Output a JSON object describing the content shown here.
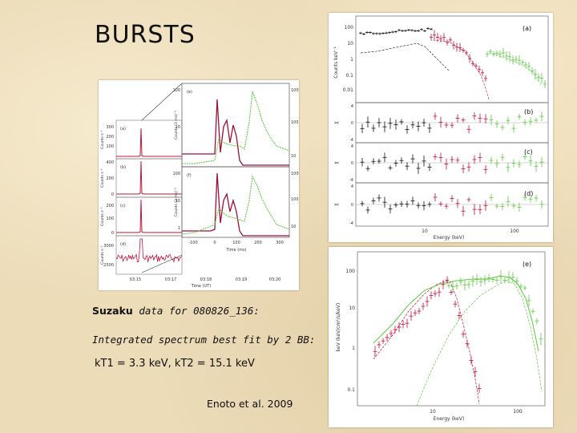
{
  "slide": {
    "title": "BURSTS",
    "caption_brand": "Suzaku",
    "caption_line1_rest": " data for 080826_136:",
    "caption_line2": "Integrated spectrum best fit by 2 BB:",
    "caption_line3": "kT1 = 3.3 keV, kT2 = 15.1 keV",
    "citation": "Enoto et al. 2009"
  },
  "colors": {
    "red": "#c0143c",
    "green": "#5fc842",
    "black": "#111111"
  },
  "chart_data": [
    {
      "type": "line",
      "panel": "light-curves",
      "xlabel": "Time (UT)",
      "x_ticks": [
        "03:15",
        "03:17",
        "03:18",
        "03:19",
        "03:20"
      ],
      "subpanels": [
        {
          "label": "(a)",
          "ylabel": "Counts s⁻¹",
          "y_ticks": [
            "300",
            "200",
            "100"
          ],
          "spike_at": "03:16"
        },
        {
          "label": "(b)",
          "ylabel": "Counts s⁻¹",
          "y_ticks": [
            "400",
            "200",
            "0"
          ],
          "spike_at": "03:16"
        },
        {
          "label": "(c)",
          "ylabel": "Counts s⁻¹",
          "y_ticks": [
            "200",
            "100",
            "0"
          ],
          "spike_at": "03:16"
        },
        {
          "label": "(d)",
          "ylabel": "Counts s⁻¹",
          "y_ticks": [
            "3000",
            "2500"
          ],
          "spike_at": "03:16"
        }
      ]
    },
    {
      "type": "line",
      "panel": "burst-zoom",
      "xlabel": "Time (ms)",
      "x_ticks": [
        "-100",
        "0",
        "100",
        "200",
        "300"
      ],
      "subpanels": [
        {
          "label": "(e)",
          "ylabel": "Counts (3 ms)⁻¹",
          "y_ticks_left": [
            "100",
            "10"
          ],
          "y_ticks_right": [
            "1000",
            "100",
            "10"
          ]
        },
        {
          "label": "(f)",
          "ylabel": "Counts (3 ms)⁻¹",
          "y_ticks_left": [
            "100",
            "10",
            "1"
          ],
          "y_ticks_right": [
            "1000",
            "100",
            "10"
          ]
        }
      ]
    },
    {
      "type": "scatter",
      "panel": "spectrum-fit",
      "xlabel": "Energy (keV)",
      "x_ticks": [
        "10",
        "100"
      ],
      "subpanels": [
        {
          "label": "(a)",
          "ylabel": "Counts keV⁻¹",
          "y_ticks": [
            "100",
            "10",
            "1",
            "0.1",
            "0.01"
          ],
          "yscale": "log"
        },
        {
          "label": "(b)",
          "ylabel": "χ",
          "y_ticks": [
            "4",
            "2",
            "0",
            "-2",
            "-4"
          ]
        },
        {
          "label": "(c)",
          "ylabel": "χ",
          "y_ticks": [
            "4",
            "2",
            "0",
            "-2",
            "-4"
          ]
        },
        {
          "label": "(d)",
          "ylabel": "χ",
          "y_ticks": [
            "4",
            "2",
            "0",
            "-2",
            "-4"
          ]
        }
      ]
    },
    {
      "type": "line",
      "panel": "nuFnu",
      "label": "(e)",
      "xlabel": "Energy (keV)",
      "ylabel": "keV (keV/cm²/s/keV)",
      "x_ticks": [
        "10",
        "100"
      ],
      "y_ticks": [
        "100",
        "10",
        "1",
        "0.1"
      ],
      "yscale": "log",
      "xscale": "log"
    }
  ]
}
